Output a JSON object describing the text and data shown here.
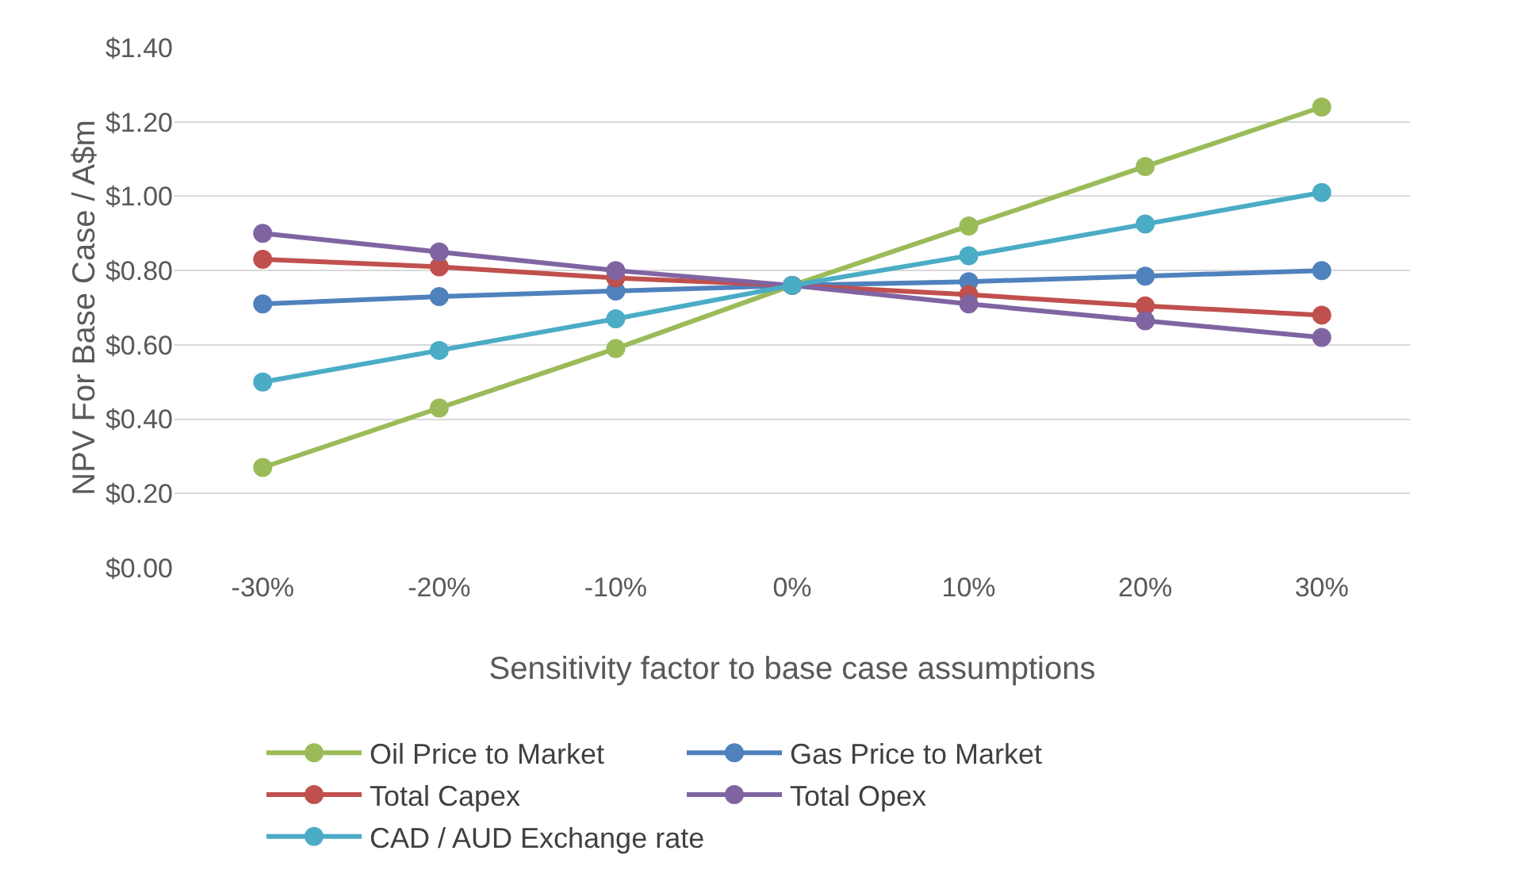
{
  "chart_data": {
    "type": "line",
    "xlabel": "Sensitivity factor to base case assumptions",
    "ylabel": "NPV For Base Case / A$m",
    "categories": [
      "-30%",
      "-20%",
      "-10%",
      "0%",
      "10%",
      "20%",
      "30%"
    ],
    "series": [
      {
        "name": "Oil Price to Market",
        "color": "#9bbb59",
        "values": [
          0.27,
          0.43,
          0.59,
          0.76,
          0.92,
          1.08,
          1.24
        ]
      },
      {
        "name": "Gas Price to Market",
        "color": "#4f81bd",
        "values": [
          0.71,
          0.73,
          0.745,
          0.76,
          0.77,
          0.785,
          0.8
        ]
      },
      {
        "name": "Total Capex",
        "color": "#c0504d",
        "values": [
          0.83,
          0.81,
          0.78,
          0.76,
          0.735,
          0.705,
          0.68
        ]
      },
      {
        "name": "Total Opex",
        "color": "#8064a2",
        "values": [
          0.9,
          0.85,
          0.8,
          0.76,
          0.71,
          0.665,
          0.62
        ]
      },
      {
        "name": "CAD / AUD Exchange rate",
        "color": "#4bacc6",
        "values": [
          0.5,
          0.585,
          0.67,
          0.76,
          0.84,
          0.925,
          1.01
        ]
      }
    ],
    "ylim": [
      0,
      1.4
    ],
    "yticks": [
      {
        "value": 0,
        "label": "$0.00"
      },
      {
        "value": 0.2,
        "label": "$0.20"
      },
      {
        "value": 0.4,
        "label": "$0.40"
      },
      {
        "value": 0.6,
        "label": "$0.60"
      },
      {
        "value": 0.8,
        "label": "$0.80"
      },
      {
        "value": 1.0,
        "label": "$1.00"
      },
      {
        "value": 1.2,
        "label": "$1.20"
      },
      {
        "value": 1.4,
        "label": "$1.40"
      }
    ],
    "grid": "y",
    "legend": "bottom",
    "marker": "circle",
    "line_style": "solid"
  }
}
